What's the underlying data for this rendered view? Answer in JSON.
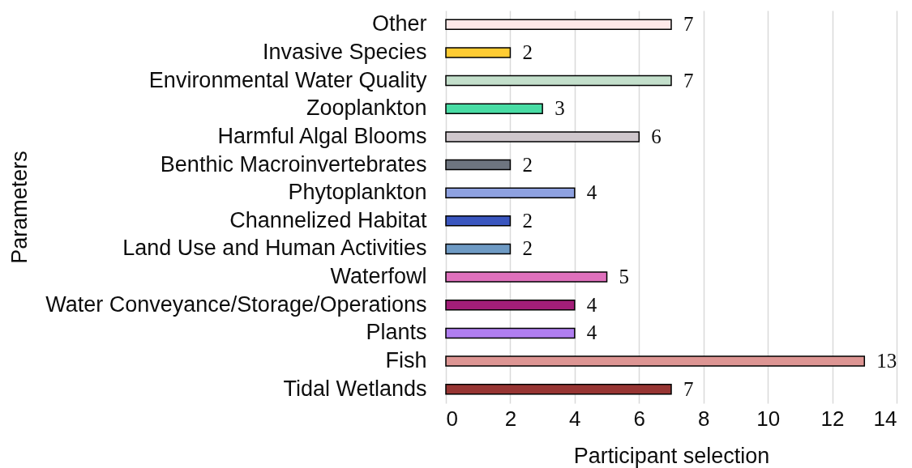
{
  "chart_data": {
    "type": "bar",
    "orientation": "horizontal",
    "categories": [
      "Other",
      "Invasive Species",
      "Environmental Water Quality",
      "Zooplankton",
      "Harmful Algal Blooms",
      "Benthic Macroinvertebrates",
      "Phytoplankton",
      "Channelized Habitat",
      "Land Use and Human Activities",
      "Waterfowl",
      "Water Conveyance/Storage/Operations",
      "Plants",
      "Fish",
      "Tidal Wetlands"
    ],
    "values": [
      7,
      2,
      7,
      3,
      6,
      2,
      4,
      2,
      2,
      5,
      4,
      4,
      13,
      7
    ],
    "colors": [
      "#fde8e8",
      "#ffcc33",
      "#c3dfcb",
      "#48dca4",
      "#cfc7cc",
      "#6e7580",
      "#8ea1e0",
      "#3a56bf",
      "#6e9ac4",
      "#df70bc",
      "#a31e78",
      "#b07ef0",
      "#dd9593",
      "#973533"
    ],
    "xlabel": "Participant selection",
    "ylabel": "Parameters",
    "xlim": [
      0,
      14
    ],
    "xticks": [
      0,
      2,
      4,
      6,
      8,
      10,
      12,
      14
    ],
    "grid": "x",
    "data_labels": true
  }
}
